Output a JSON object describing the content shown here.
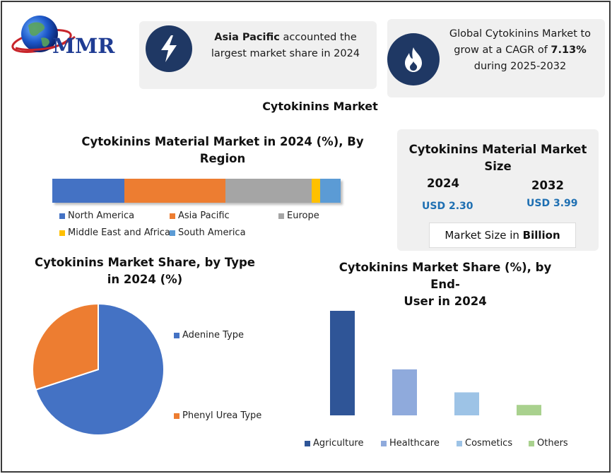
{
  "logo": {
    "text": "MMR"
  },
  "callout_left": {
    "bold": "Asia Pacific",
    "rest": " accounted the",
    "line2": "largest market share in 2024"
  },
  "callout_right": {
    "line1": "Global Cytokinins Market to",
    "line2a": "grow at a CAGR of ",
    "line2b": "7.13%",
    "line3": "during 2025-2032"
  },
  "main_title": "Cytokinins Market",
  "colors": {
    "navy": "#1f3864",
    "blue": "#4472c4",
    "orange": "#ed7d31",
    "gray": "#a5a5a5",
    "yellow": "#ffc000",
    "light_blue": "#5b9bd5",
    "accent": "#1e6fb2"
  },
  "size_box": {
    "title_line1": "Cytokinins Material Market",
    "title_line2": "Size",
    "year1": "2024",
    "value1": "USD 2.30",
    "year2": "2032",
    "value2": "USD 3.99",
    "unit_prefix": "Market Size in ",
    "unit_bold": "Billion"
  },
  "chart_data": [
    {
      "type": "bar",
      "stacked": true,
      "orientation": "horizontal",
      "title": "Cytokinins Material Market in 2024 (%), By Region",
      "series": [
        {
          "name": "North America",
          "values": [
            25
          ],
          "color": "#4472c4"
        },
        {
          "name": "Asia Pacific",
          "values": [
            35
          ],
          "color": "#ed7d31"
        },
        {
          "name": "Europe",
          "values": [
            30
          ],
          "color": "#a5a5a5"
        },
        {
          "name": "Middle East and Africa",
          "values": [
            3
          ],
          "color": "#ffc000"
        },
        {
          "name": "South America",
          "values": [
            7
          ],
          "color": "#5b9bd5"
        }
      ],
      "legend": "bottom"
    },
    {
      "type": "pie",
      "title_line1": "Cytokinins Market Share, by Type",
      "title_line2": "in 2024 (%)",
      "slices": [
        {
          "name": "Adenine Type",
          "value": 70,
          "color": "#4472c4"
        },
        {
          "name": "Phenyl Urea Type",
          "value": 30,
          "color": "#ed7d31"
        }
      ],
      "legend": "right"
    },
    {
      "type": "bar",
      "title_line1": "Cytokinins Market Share (%), by End-",
      "title_line2": "User in 2024",
      "categories": [
        "Agriculture",
        "Healthcare",
        "Cosmetics",
        "Others"
      ],
      "values": [
        50,
        22,
        11,
        5
      ],
      "colors": [
        "#2f5597",
        "#8faadc",
        "#9dc3e6",
        "#a9d18e"
      ],
      "ylim": [
        0,
        50
      ],
      "legend": "bottom"
    }
  ]
}
